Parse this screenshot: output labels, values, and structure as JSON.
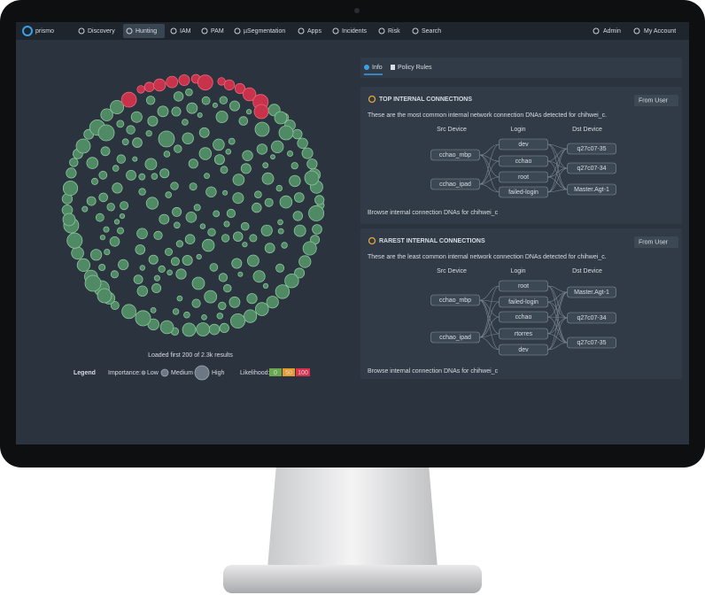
{
  "nav": {
    "brand": "prismo",
    "items": [
      "Discovery",
      "Hunting",
      "IAM",
      "PAM",
      "µSegmentation",
      "Apps",
      "Incidents",
      "Risk",
      "Search"
    ],
    "right": [
      "Admin",
      "My Account"
    ]
  },
  "cloud": {
    "status": "Loaded first 200 of 2.3k results"
  },
  "legend": {
    "title": "Legend",
    "importance": "Importance:",
    "low": "Low",
    "medium": "Medium",
    "high": "High",
    "likelihood": "Likelihood:",
    "levels": [
      0,
      50,
      100
    ]
  },
  "tabs": [
    "Info",
    "Policy Rules"
  ],
  "panels": [
    {
      "title": "TOP INTERNAL CONNECTIONS",
      "filter": "From User",
      "description": "These are the most common internal network connection DNAs detected for chihwei_c.",
      "columns": [
        "Src Device",
        "Login",
        "Dst Device"
      ],
      "src": [
        "cchao_mbp",
        "cchao_ipad"
      ],
      "login": [
        "dev",
        "cchao",
        "root",
        "failed-login"
      ],
      "dst": [
        "q27c07-35",
        "q27c07-34",
        "Master.Agt-1"
      ],
      "link": "Browse internal connection DNAs for chihwei_c"
    },
    {
      "title": "RAREST INTERNAL CONNECTIONS",
      "filter": "From User",
      "description": "These are the least common internal network connection DNAs detected for chihwei_c.",
      "columns": [
        "Src Device",
        "Login",
        "Dst Device"
      ],
      "src": [
        "cchao_mbp",
        "cchao_ipad"
      ],
      "login": [
        "root",
        "failed-login",
        "cchao",
        "rtorres",
        "dev"
      ],
      "dst": [
        "Master.Agt-1",
        "q27c07-34",
        "q27c07-35"
      ],
      "link": "Browse internal connection DNAs for chihwei_c"
    }
  ]
}
